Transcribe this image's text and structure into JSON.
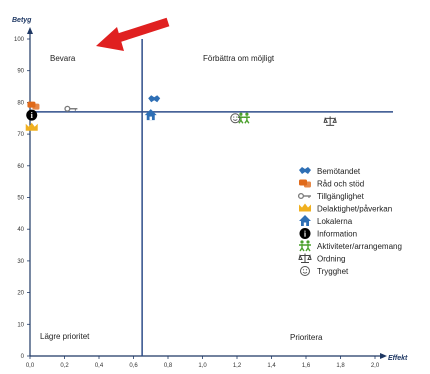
{
  "chart_data": {
    "type": "scatter",
    "xlabel": "Effekt",
    "ylabel": "Betyg",
    "xlim": [
      0,
      2.0
    ],
    "ylim": [
      0,
      100
    ],
    "x_ticks": [
      "0,0",
      "0,2",
      "0,4",
      "0,6",
      "0,8",
      "1,0",
      "1,2",
      "1,4",
      "1,6",
      "1,8",
      "2,0"
    ],
    "y_ticks": [
      "0",
      "10",
      "20",
      "30",
      "40",
      "50",
      "60",
      "70",
      "80",
      "90",
      "100"
    ],
    "reference_lines": {
      "x": 0.65,
      "y": 77
    },
    "quadrant_labels": {
      "top_left": "Bevara",
      "top_right": "Förbättra om möjligt",
      "bottom_left": "Lägre prioritet",
      "bottom_right": "Prioritera"
    },
    "series": [
      {
        "name": "Bemötandet",
        "icon": "handshake-icon",
        "color": "#2e6fb5",
        "x": 0.72,
        "y": 81
      },
      {
        "name": "Råd och stöd",
        "icon": "chat-icon",
        "color": "#e06a1a",
        "x": 0.02,
        "y": 79
      },
      {
        "name": "Tillgänglighet",
        "icon": "key-icon",
        "color": "#7a7a7a",
        "x": 0.24,
        "y": 78
      },
      {
        "name": "Delaktighet/påverkan",
        "icon": "crown-icon",
        "color": "#f0b020",
        "x": 0.01,
        "y": 72
      },
      {
        "name": "Lokalerna",
        "icon": "house-icon",
        "color": "#2e6fb5",
        "x": 0.7,
        "y": 76
      },
      {
        "name": "Information",
        "icon": "info-icon",
        "color": "#000000",
        "x": 0.01,
        "y": 76
      },
      {
        "name": "Aktiviteter/arrangemang",
        "icon": "people-icon",
        "color": "#4aa02c",
        "x": 1.24,
        "y": 75
      },
      {
        "name": "Ordning",
        "icon": "scales-icon",
        "color": "#444444",
        "x": 1.74,
        "y": 74
      },
      {
        "name": "Trygghet",
        "icon": "smiley-icon",
        "color": "#555555",
        "x": 1.19,
        "y": 75
      }
    ]
  },
  "colors": {
    "axis": "#1f3864",
    "reference": "#2e4d8a",
    "arrow": "#e02020"
  }
}
